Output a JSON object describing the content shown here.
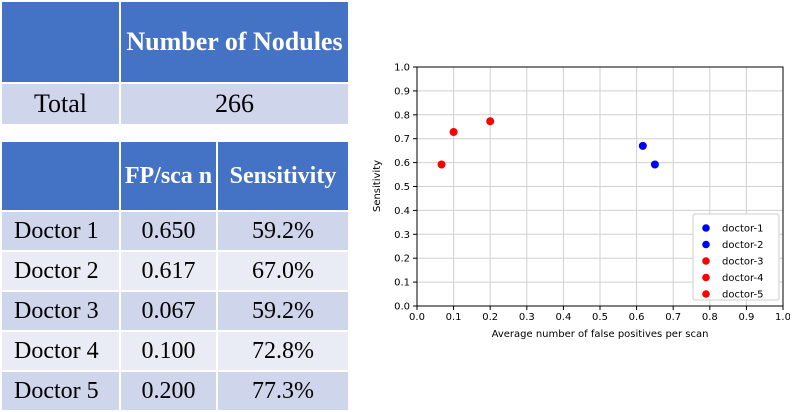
{
  "summary_table": {
    "header": [
      "",
      "Number of Nodules"
    ],
    "row": {
      "label": "Total",
      "value": "266"
    }
  },
  "doctor_table": {
    "header": [
      "",
      "FP/sca n",
      "Sensitivity"
    ],
    "rows": [
      {
        "name": "Doctor 1",
        "fp": "0.650",
        "sens": "59.2%"
      },
      {
        "name": "Doctor 2",
        "fp": "0.617",
        "sens": "67.0%"
      },
      {
        "name": "Doctor 3",
        "fp": "0.067",
        "sens": "59.2%"
      },
      {
        "name": "Doctor 4",
        "fp": "0.100",
        "sens": "72.8%"
      },
      {
        "name": "Doctor 5",
        "fp": "0.200",
        "sens": "77.3%"
      }
    ]
  },
  "chart_data": {
    "type": "scatter",
    "title": "",
    "xlabel": "Average number of false positives per scan",
    "ylabel": "Sensitivity",
    "xlim": [
      0.0,
      1.0
    ],
    "ylim": [
      0.0,
      1.0
    ],
    "xticks": [
      "0.0",
      "0.1",
      "0.2",
      "0.3",
      "0.4",
      "0.5",
      "0.6",
      "0.7",
      "0.8",
      "0.9",
      "1.0"
    ],
    "yticks": [
      "0.0",
      "0.1",
      "0.2",
      "0.3",
      "0.4",
      "0.5",
      "0.6",
      "0.7",
      "0.8",
      "0.9",
      "1.0"
    ],
    "grid": true,
    "legend_position": "bottom-right",
    "series": [
      {
        "name": "doctor-1",
        "color": "#0000ff",
        "points": [
          [
            0.65,
            0.592
          ]
        ]
      },
      {
        "name": "doctor-2",
        "color": "#0000ff",
        "points": [
          [
            0.617,
            0.67
          ]
        ]
      },
      {
        "name": "doctor-3",
        "color": "#ff0000",
        "points": [
          [
            0.067,
            0.592
          ]
        ]
      },
      {
        "name": "doctor-4",
        "color": "#ff0000",
        "points": [
          [
            0.1,
            0.728
          ]
        ]
      },
      {
        "name": "doctor-5",
        "color": "#ff0000",
        "points": [
          [
            0.2,
            0.773
          ]
        ]
      }
    ]
  },
  "colors": {
    "header_bg": "#4472c4",
    "row_dark": "#cfd5ea",
    "row_light": "#e9ebf5"
  }
}
